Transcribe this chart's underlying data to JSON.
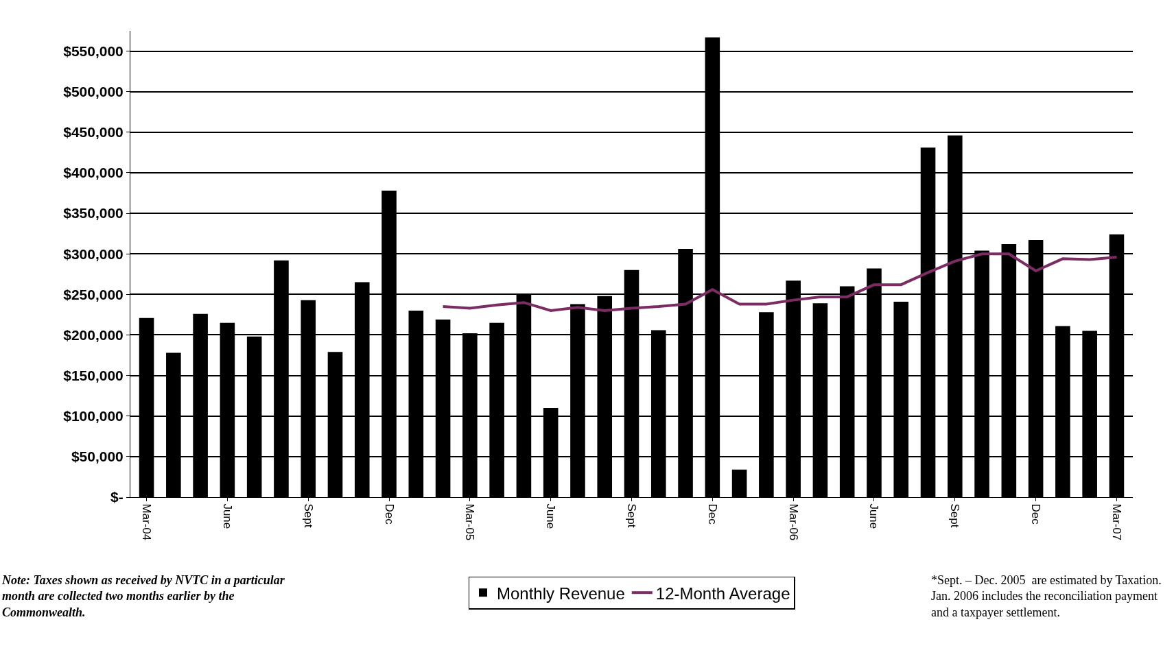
{
  "chart_data": {
    "type": "bar",
    "categories": [
      "Mar-04",
      null,
      null,
      "June",
      null,
      null,
      "Sept",
      null,
      null,
      "Dec",
      null,
      null,
      "Mar-05",
      null,
      null,
      "June",
      null,
      null,
      "Sept",
      null,
      null,
      "Dec",
      null,
      null,
      "Mar-06",
      null,
      null,
      "June",
      null,
      null,
      "Sept",
      null,
      null,
      "Dec",
      null,
      null,
      "Mar-07"
    ],
    "series": [
      {
        "name": "Monthly Revenue",
        "color": "#000000",
        "values": [
          221000,
          178000,
          226000,
          215000,
          198000,
          292000,
          243000,
          179000,
          265000,
          378000,
          230000,
          219000,
          202000,
          215000,
          251000,
          110000,
          238000,
          248000,
          280000,
          206000,
          306000,
          567000,
          34000,
          228000,
          267000,
          239000,
          260000,
          282000,
          241000,
          431000,
          446000,
          304000,
          312000,
          317000,
          211000,
          205000,
          324000
        ]
      },
      {
        "name": "12-Month Average",
        "type": "line",
        "color": "#7b2d63",
        "values": [
          null,
          null,
          null,
          null,
          null,
          null,
          null,
          null,
          null,
          null,
          null,
          235000,
          233000,
          237000,
          240000,
          230000,
          234000,
          230000,
          233000,
          235000,
          238000,
          256000,
          238000,
          238000,
          243000,
          247000,
          247000,
          262000,
          262000,
          277000,
          291000,
          300000,
          300000,
          279000,
          294000,
          293000,
          296000
        ]
      }
    ],
    "ylim": [
      0,
      575000
    ],
    "yticks": [
      {
        "value": 0,
        "label": "$-"
      },
      {
        "value": 50000,
        "label": "$50,000"
      },
      {
        "value": 100000,
        "label": "$100,000"
      },
      {
        "value": 150000,
        "label": "$150,000"
      },
      {
        "value": 200000,
        "label": "$200,000"
      },
      {
        "value": 250000,
        "label": "$250,000"
      },
      {
        "value": 300000,
        "label": "$300,000"
      },
      {
        "value": 350000,
        "label": "$350,000"
      },
      {
        "value": 400000,
        "label": "$400,000"
      },
      {
        "value": 450000,
        "label": "$450,000"
      },
      {
        "value": 500000,
        "label": "$500,000"
      },
      {
        "value": 550000,
        "label": "$550,000"
      }
    ],
    "grid": "y",
    "legend": "bottom",
    "marker": "none",
    "line_style": "solid",
    "annotations": [
      "Note: Taxes shown as received by NVTC in a particular month are collected two months earlier by the Commonwealth.",
      "*Sept. – Dec. 2005  are estimated by Taxation. Jan. 2006 includes the reconciliation payment and a taxpayer settlement."
    ]
  }
}
